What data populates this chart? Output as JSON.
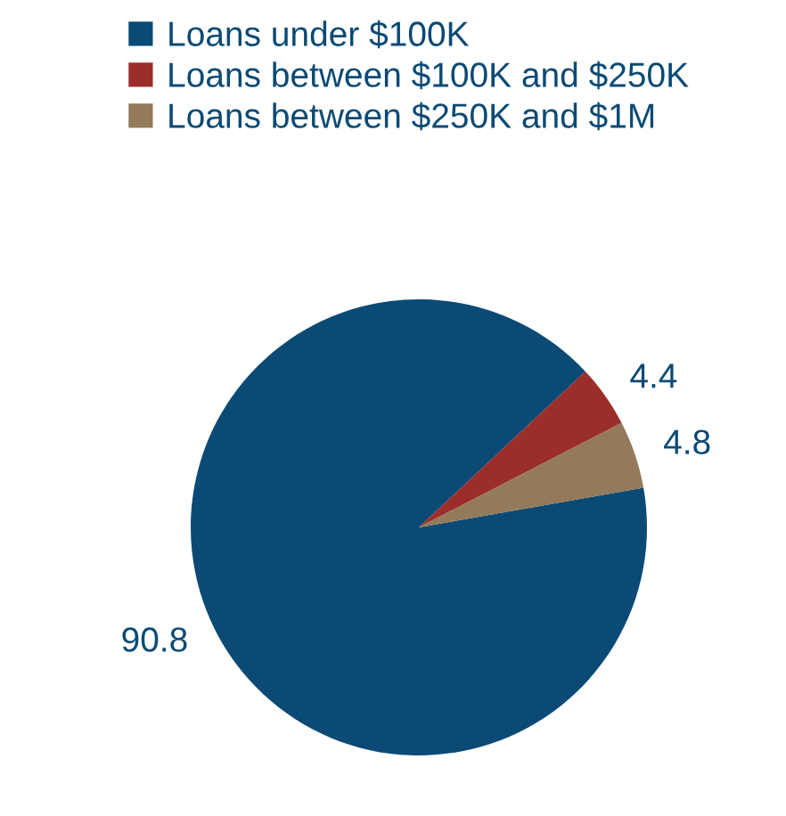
{
  "chart_data": {
    "type": "pie",
    "categories": [
      "Loans under $100K",
      "Loans between $100K and $250K",
      "Loans between $250K and $1M"
    ],
    "values": [
      90.8,
      4.4,
      4.8
    ],
    "colors": [
      "#0b4a74",
      "#9b2d2a",
      "#927a5a"
    ],
    "data_labels": true,
    "legend": "top"
  }
}
